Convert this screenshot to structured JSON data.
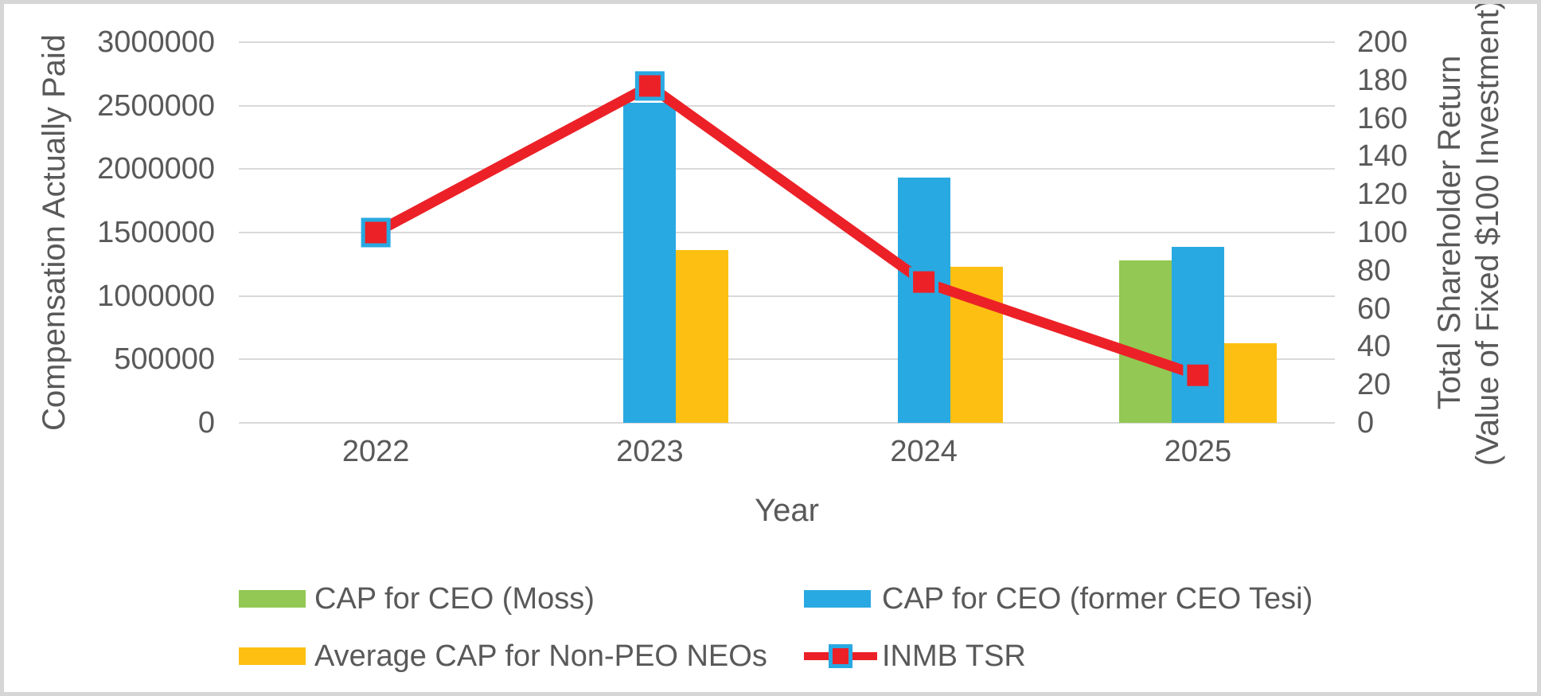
{
  "chart_data": {
    "type": "combo-bar-line",
    "categories": [
      "2022",
      "2023",
      "2024",
      "2025"
    ],
    "series": [
      {
        "name": "CAP for CEO (Moss)",
        "type": "bar",
        "axis": "left",
        "color": "#92C853",
        "values": [
          null,
          null,
          null,
          1280000
        ]
      },
      {
        "name": "CAP for CEO (former CEO Tesi)",
        "type": "bar",
        "axis": "left",
        "color": "#29A9E1",
        "values": [
          null,
          2520000,
          1930000,
          1390000
        ]
      },
      {
        "name": "Average CAP for Non-PEO NEOs",
        "type": "bar",
        "axis": "left",
        "color": "#FDBF12",
        "values": [
          null,
          1360000,
          1230000,
          630000
        ]
      },
      {
        "name": "INMB TSR",
        "type": "line",
        "axis": "right",
        "color": "#EC2127",
        "marker": {
          "shape": "square",
          "fill": "#EC2127",
          "border": "#29A9E1"
        },
        "values": [
          100,
          177,
          74,
          25
        ]
      }
    ],
    "left_axis": {
      "title": "Compensation Actually Paid",
      "min": 0,
      "max": 3000000,
      "step": 500000,
      "tick_labels": [
        "3000000",
        "2500000",
        "2000000",
        "1500000",
        "1000000",
        "500000",
        "0"
      ]
    },
    "right_axis": {
      "title_line1": "Total Shareholder Return",
      "title_line2": "(Value of Fixed $100 Investment)",
      "min": 0,
      "max": 200,
      "step": 20,
      "tick_labels": [
        "200",
        "180",
        "160",
        "140",
        "120",
        "100",
        "80",
        "60",
        "40",
        "20",
        "0"
      ]
    },
    "x_axis": {
      "title": "Year"
    },
    "grid": "horizontal",
    "gridline_color": "#D9D9D9",
    "text_color": "#595959",
    "legend_position": "bottom",
    "legend": [
      {
        "label": "CAP for CEO (Moss)",
        "swatch": "bar",
        "color": "#92C853"
      },
      {
        "label": "CAP for CEO (former CEO Tesi)",
        "swatch": "bar",
        "color": "#29A9E1"
      },
      {
        "label": "Average CAP for Non-PEO NEOs",
        "swatch": "bar",
        "color": "#FDBF12"
      },
      {
        "label": "INMB TSR",
        "swatch": "line-marker",
        "color": "#EC2127",
        "marker_border": "#29A9E1"
      }
    ]
  }
}
